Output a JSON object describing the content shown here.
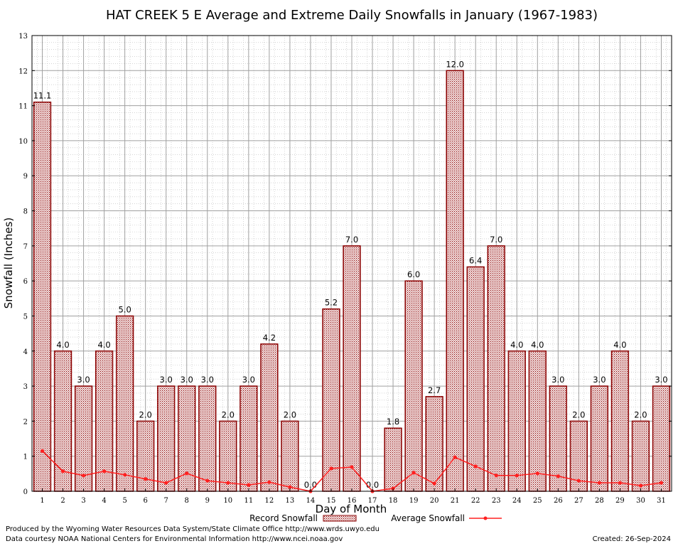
{
  "chart_data": {
    "type": "bar",
    "title": "HAT CREEK 5 E Average and Extreme Daily Snowfalls in January (1967-1983)",
    "xlabel": "Day of Month",
    "ylabel": "Snowfall (Inches)",
    "ylim": [
      0,
      13
    ],
    "yticks": [
      "0",
      "1",
      "2",
      "3",
      "4",
      "5",
      "6",
      "7",
      "8",
      "9",
      "10",
      "11",
      "12",
      "13"
    ],
    "grid": true,
    "legend_placement": "bottom-center",
    "categories": [
      "1",
      "2",
      "3",
      "4",
      "5",
      "6",
      "7",
      "8",
      "9",
      "10",
      "11",
      "12",
      "13",
      "14",
      "15",
      "16",
      "17",
      "18",
      "19",
      "20",
      "21",
      "22",
      "23",
      "24",
      "25",
      "26",
      "27",
      "28",
      "29",
      "30",
      "31"
    ],
    "series": [
      {
        "name": "Record Snowfall",
        "type": "bar",
        "color": "#8b0000",
        "values": [
          11.1,
          4.0,
          3.0,
          4.0,
          5.0,
          2.0,
          3.0,
          3.0,
          3.0,
          2.0,
          3.0,
          4.2,
          2.0,
          0.0,
          5.2,
          7.0,
          0.0,
          1.8,
          6.0,
          2.7,
          12.0,
          6.4,
          7.0,
          4.0,
          4.0,
          3.0,
          2.0,
          3.0,
          4.0,
          2.0,
          3.0
        ],
        "labels": [
          "11.1",
          "4.0",
          "3.0",
          "4.0",
          "5.0",
          "2.0",
          "3.0",
          "3.0",
          "3.0",
          "2.0",
          "3.0",
          "4.2",
          "2.0",
          "0.0",
          "5.2",
          "7.0",
          "0.0",
          "1.8",
          "6.0",
          "2.7",
          "12.0",
          "6.4",
          "7.0",
          "4.0",
          "4.0",
          "3.0",
          "2.0",
          "3.0",
          "4.0",
          "2.0",
          "3.0"
        ]
      },
      {
        "name": "Average Snowfall",
        "type": "line",
        "color": "#ff2020",
        "values": [
          1.15,
          0.57,
          0.45,
          0.57,
          0.47,
          0.35,
          0.24,
          0.51,
          0.3,
          0.24,
          0.18,
          0.26,
          0.12,
          0.0,
          0.65,
          0.69,
          0.0,
          0.08,
          0.53,
          0.22,
          0.97,
          0.71,
          0.45,
          0.45,
          0.51,
          0.43,
          0.3,
          0.24,
          0.24,
          0.16,
          0.24
        ]
      }
    ]
  },
  "footer": {
    "line1": "Produced by the Wyoming Water Resources Data System/State Climate Office http://www.wrds.uwyo.edu",
    "line2": "Data courtesy NOAA National Centers for Environmental Information http://www.ncei.noaa.gov",
    "created": "Created:  26-Sep-2024"
  }
}
